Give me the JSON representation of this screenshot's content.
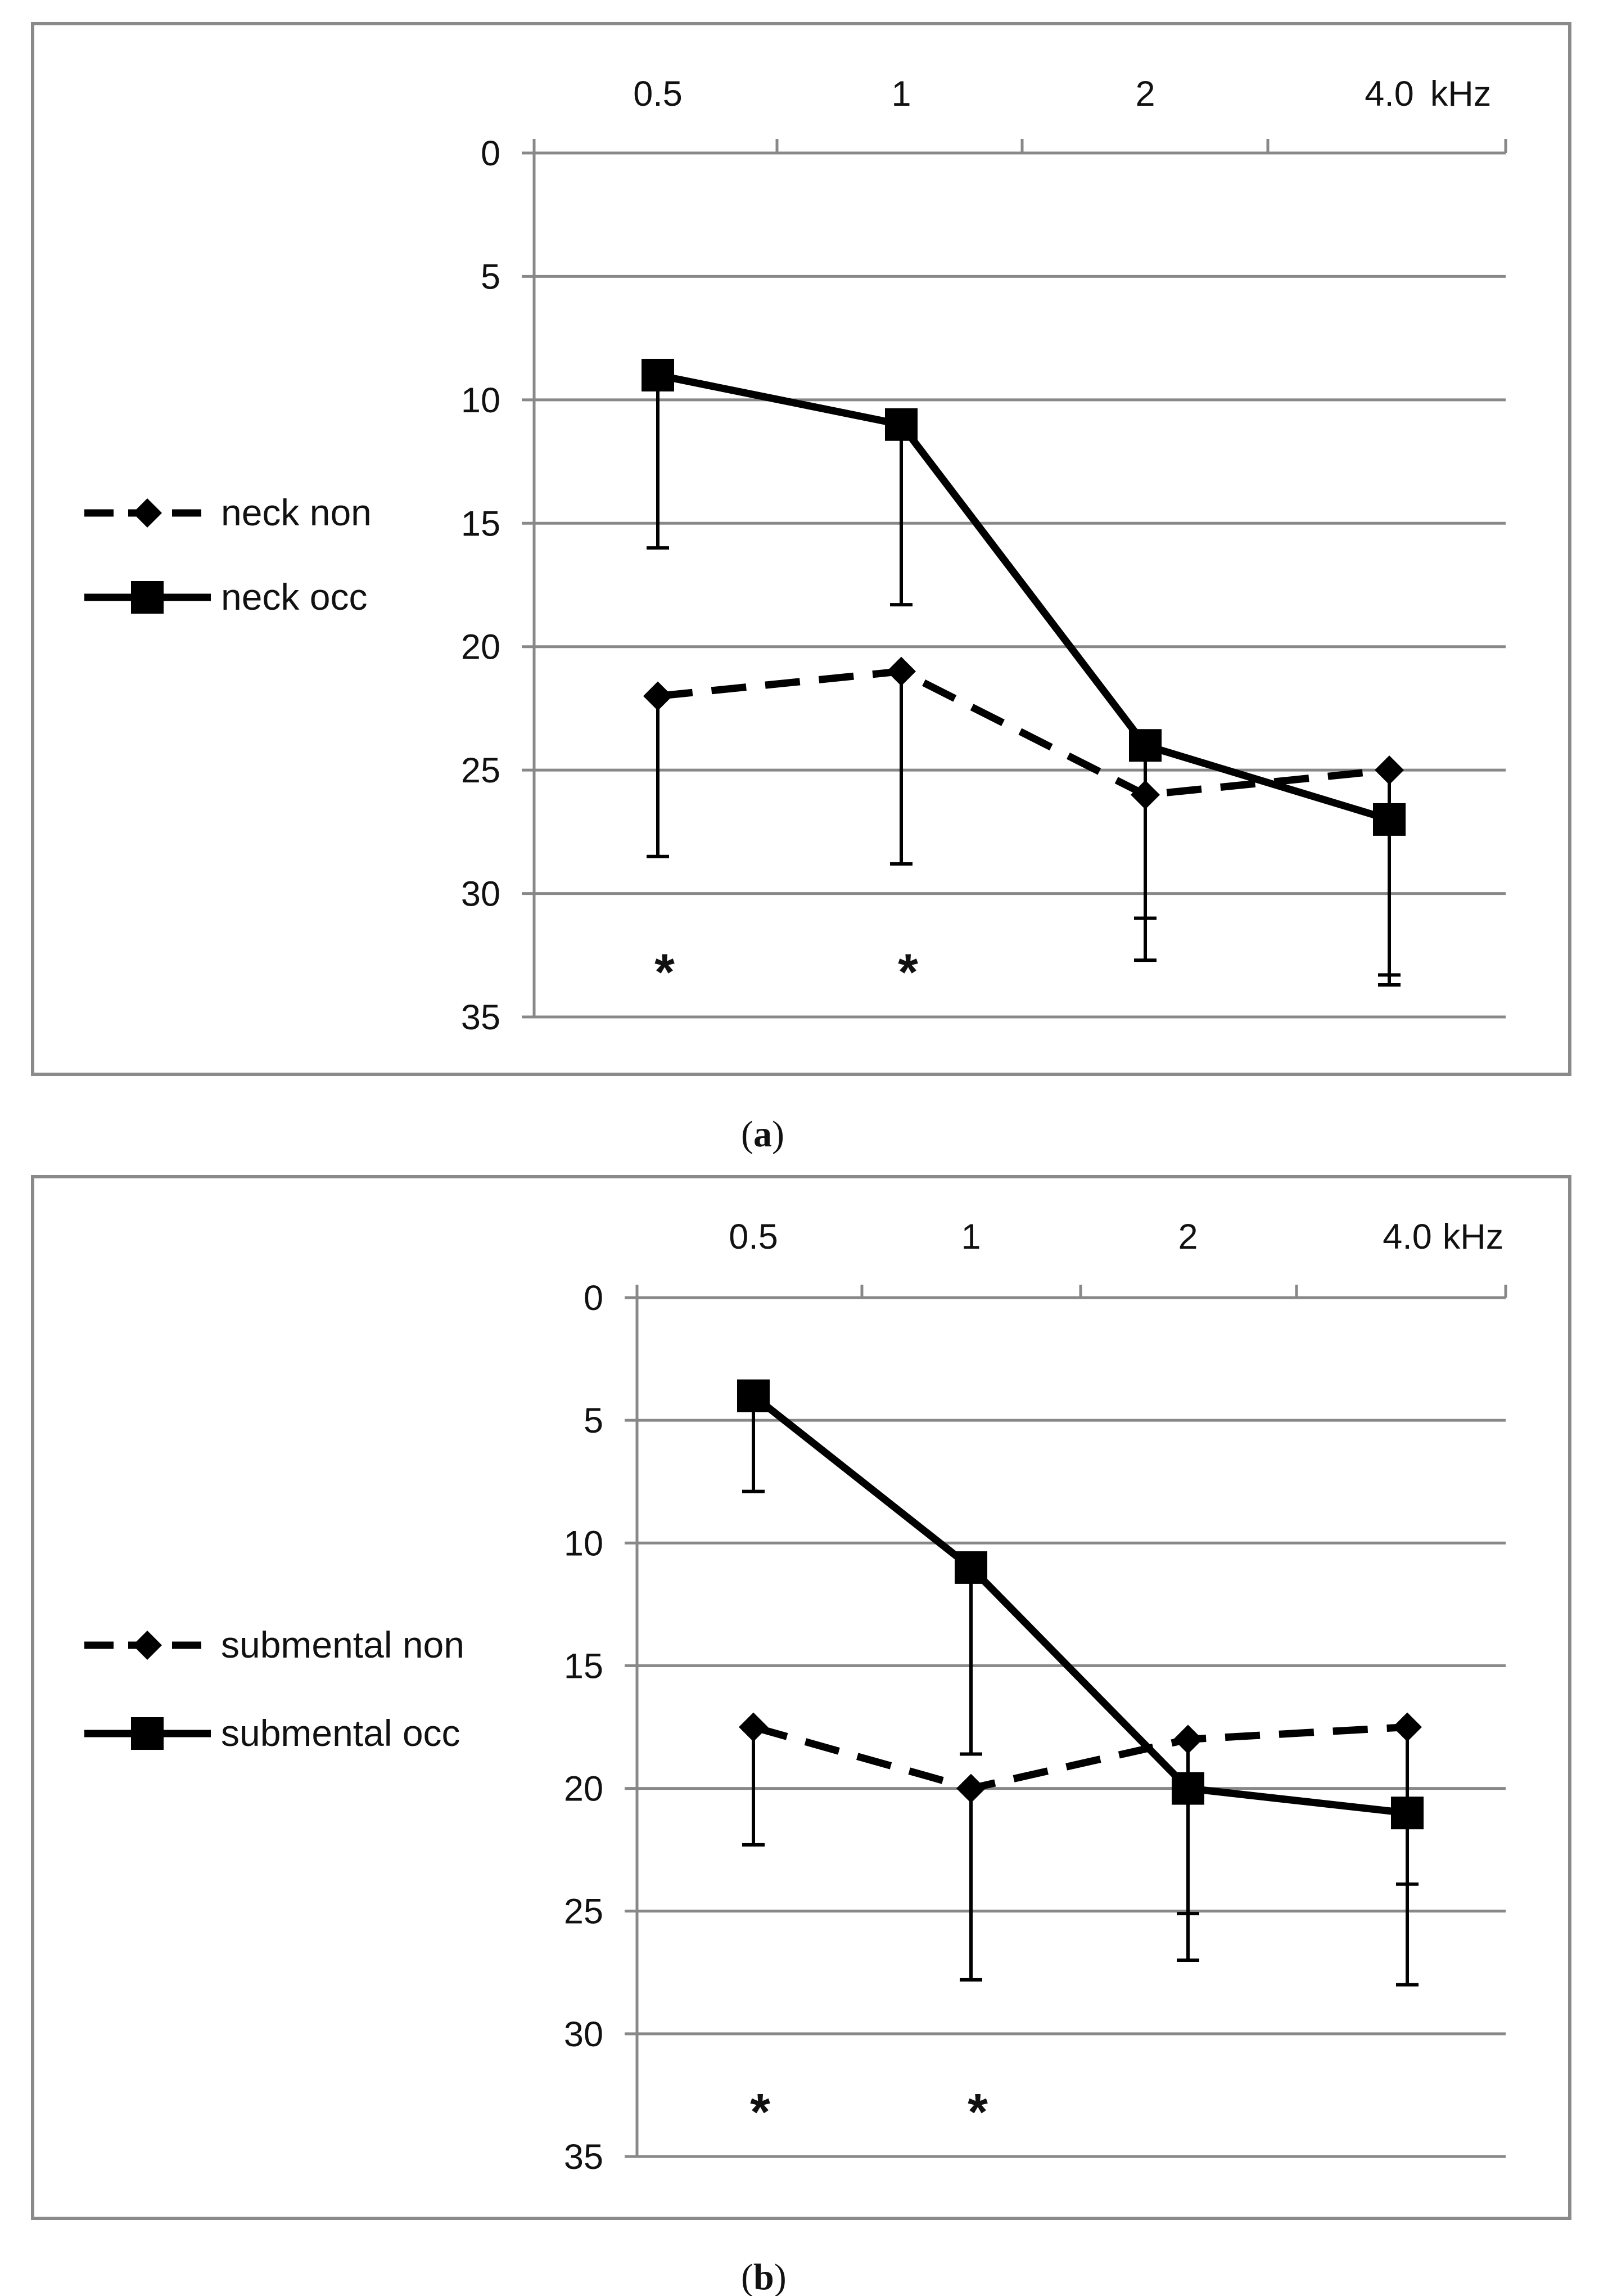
{
  "figure": {
    "panel_a_caption": {
      "open": "(",
      "letter": "a",
      "close": ")"
    },
    "panel_b_caption": {
      "open": "(",
      "letter": "b",
      "close": ")"
    }
  },
  "colors": {
    "ink": "#000000",
    "grid": "#888888",
    "frame": "#8a8a8a",
    "background": "#ffffff"
  },
  "chart_data": [
    {
      "id": "a",
      "type": "line",
      "title": "",
      "x_unit_label": "kHz",
      "categories": [
        "0.5",
        "1",
        "2",
        "4.0"
      ],
      "y_ticks": [
        "0",
        "5",
        "10",
        "15",
        "20",
        "25",
        "30",
        "35"
      ],
      "ylim": [
        0,
        35
      ],
      "y_inverted": true,
      "x_axis_position": "top",
      "grid": true,
      "legend": "left",
      "series": [
        {
          "name": "neck non",
          "marker": "diamond",
          "line": "dashed",
          "values": [
            22,
            21,
            26,
            25
          ],
          "error_to": [
            28.5,
            28.8,
            32.7,
            33.7
          ]
        },
        {
          "name": "neck occ",
          "marker": "square",
          "line": "solid",
          "values": [
            9,
            11,
            24,
            27
          ],
          "error_to": [
            16,
            18.3,
            31,
            33.3
          ]
        }
      ],
      "significance_markers": [
        "*",
        "*",
        "",
        ""
      ],
      "significance_y": 33
    },
    {
      "id": "b",
      "type": "line",
      "title": "",
      "x_unit_label": "kHz",
      "categories": [
        "0.5",
        "1",
        "2",
        "4.0"
      ],
      "y_ticks": [
        "0",
        "5",
        "10",
        "15",
        "20",
        "25",
        "30",
        "35"
      ],
      "ylim": [
        0,
        35
      ],
      "y_inverted": true,
      "x_axis_position": "top",
      "grid": true,
      "legend": "left",
      "series": [
        {
          "name": "submental non",
          "marker": "diamond",
          "line": "dashed",
          "values": [
            17.5,
            20,
            18,
            17.5
          ],
          "error_to": [
            22.3,
            27.8,
            27,
            28
          ]
        },
        {
          "name": "submental occ",
          "marker": "square",
          "line": "solid",
          "values": [
            4,
            11,
            20,
            21
          ],
          "error_to": [
            7.9,
            18.6,
            25.1,
            23.9
          ]
        }
      ],
      "significance_markers": [
        "*",
        "*",
        "",
        ""
      ],
      "significance_y": 33
    }
  ]
}
